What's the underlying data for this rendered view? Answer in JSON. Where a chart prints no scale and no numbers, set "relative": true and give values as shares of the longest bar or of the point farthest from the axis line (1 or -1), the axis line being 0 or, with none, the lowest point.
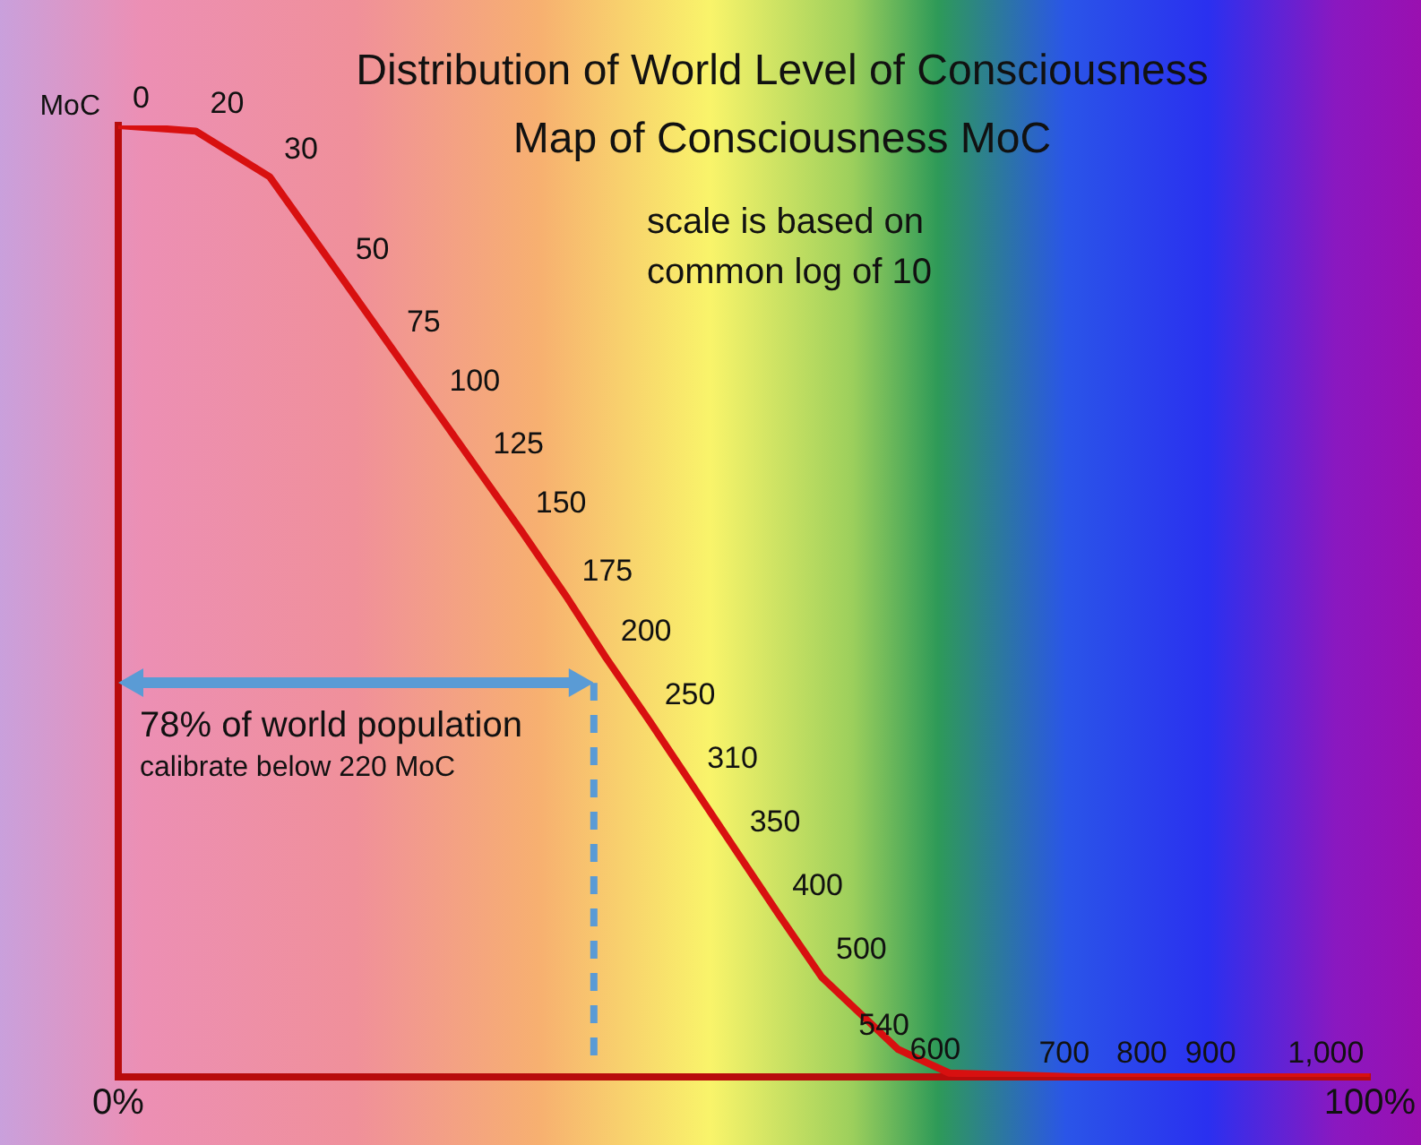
{
  "chart_data": {
    "type": "line",
    "title": "Distribution of World Level of Consciousness",
    "subtitle": "Map of Consciousness  MoC",
    "ylabel": "MoC",
    "relative": true,
    "x": [
      0,
      6.2,
      12.1,
      17.8,
      21.9,
      25.3,
      28.8,
      32.2,
      35.9,
      39.0,
      42.5,
      45.9,
      49.3,
      52.7,
      56.2,
      62.3,
      66.4,
      76.7,
      82.9,
      88.4,
      96.6,
      100
    ],
    "xlim": [
      0,
      100
    ],
    "xticks": [
      {
        "value": 0,
        "label": "0%"
      },
      {
        "value": 100,
        "label": "100%"
      }
    ],
    "series": [
      {
        "color": "#d81010",
        "values": [
          1,
          0.994,
          0.946,
          0.841,
          0.765,
          0.702,
          0.637,
          0.574,
          0.503,
          0.44,
          0.373,
          0.306,
          0.239,
          0.172,
          0.105,
          0.029,
          0.004,
          0,
          0,
          0,
          0,
          0
        ]
      }
    ],
    "ref_lines": [
      {
        "axis": "x",
        "value": 38,
        "color": "#5a9bd5",
        "line_style": "dashed"
      }
    ],
    "annotations": [
      "78% of world population",
      "calibrate below 220 MoC",
      "scale is based on",
      "common log of 10",
      {
        "text": "0",
        "x": 0,
        "y": 1
      },
      {
        "text": "20",
        "x": 6.2,
        "y": 0.994
      },
      {
        "text": "30",
        "x": 12.1,
        "y": 0.946
      },
      {
        "text": "50",
        "x": 17.8,
        "y": 0.841
      },
      {
        "text": "75",
        "x": 21.9,
        "y": 0.765
      },
      {
        "text": "100",
        "x": 25.3,
        "y": 0.702
      },
      {
        "text": "125",
        "x": 28.8,
        "y": 0.637
      },
      {
        "text": "150",
        "x": 32.2,
        "y": 0.574
      },
      {
        "text": "175",
        "x": 35.9,
        "y": 0.503
      },
      {
        "text": "200",
        "x": 39.0,
        "y": 0.44
      },
      {
        "text": "250",
        "x": 42.5,
        "y": 0.373
      },
      {
        "text": "310",
        "x": 45.9,
        "y": 0.306
      },
      {
        "text": "350",
        "x": 49.3,
        "y": 0.239
      },
      {
        "text": "400",
        "x": 52.7,
        "y": 0.172
      },
      {
        "text": "500",
        "x": 56.2,
        "y": 0.105
      },
      {
        "text": "540",
        "x": 62.3,
        "y": 0.029
      },
      {
        "text": "600",
        "x": 66.4,
        "y": 0.004
      },
      {
        "text": "700",
        "x": 76.7,
        "y": 0
      },
      {
        "text": "800",
        "x": 82.9,
        "y": 0
      },
      {
        "text": "900",
        "x": 88.4,
        "y": 0
      },
      {
        "text": "1,000",
        "x": 96.6,
        "y": 0
      }
    ],
    "grid": false,
    "legend": false,
    "marker": "none",
    "line_style": "solid"
  }
}
